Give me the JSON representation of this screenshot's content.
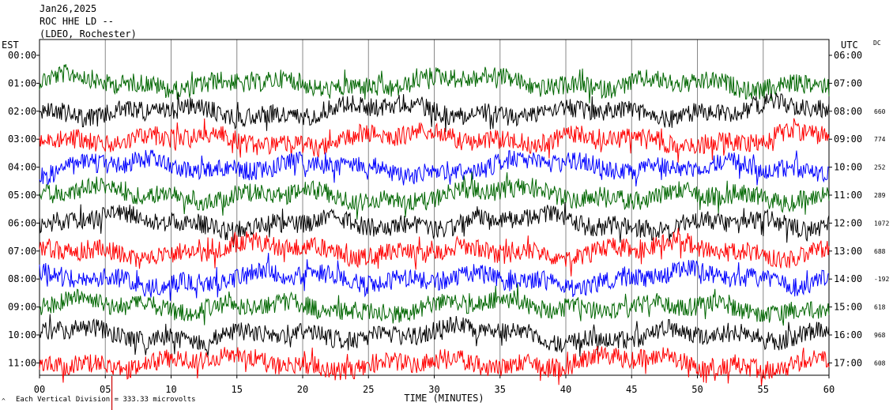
{
  "header": {
    "date": "Jan26,2025",
    "station": "ROC HHE LD --",
    "network": "(LDEO, Rochester)"
  },
  "left_axis_title": "EST",
  "right_axis_title": "UTC",
  "dc_title": "DC",
  "footer": {
    "mark": "^",
    "scale_note": "Each Vertical Division = 333.33 microvolts"
  },
  "chart_data": {
    "type": "line",
    "xlabel": "TIME (MINUTES)",
    "xlim": [
      0,
      60
    ],
    "x_ticks": [
      "00",
      "05",
      "10",
      "15",
      "20",
      "25",
      "30",
      "35",
      "40",
      "45",
      "50",
      "55",
      "60"
    ],
    "est_labels": [
      "00:00",
      "01:00",
      "02:00",
      "03:00",
      "04:00",
      "05:00",
      "06:00",
      "07:00",
      "08:00",
      "09:00",
      "10:00",
      "11:00"
    ],
    "utc_labels": [
      "06:00",
      "07:00",
      "08:00",
      "09:00",
      "10:00",
      "11:00",
      "12:00",
      "13:00",
      "14:00",
      "15:00",
      "16:00",
      "17:00"
    ],
    "dc_values": [
      "",
      "",
      "660",
      "774",
      "252",
      "289",
      "1072",
      "688",
      "-192",
      "618",
      "968",
      "608"
    ],
    "trace_colors": [
      "#0000ff",
      "#006600",
      "#000000",
      "#ff0000"
    ],
    "marker_minute": 5.5,
    "marker_color": "#cc0000"
  }
}
